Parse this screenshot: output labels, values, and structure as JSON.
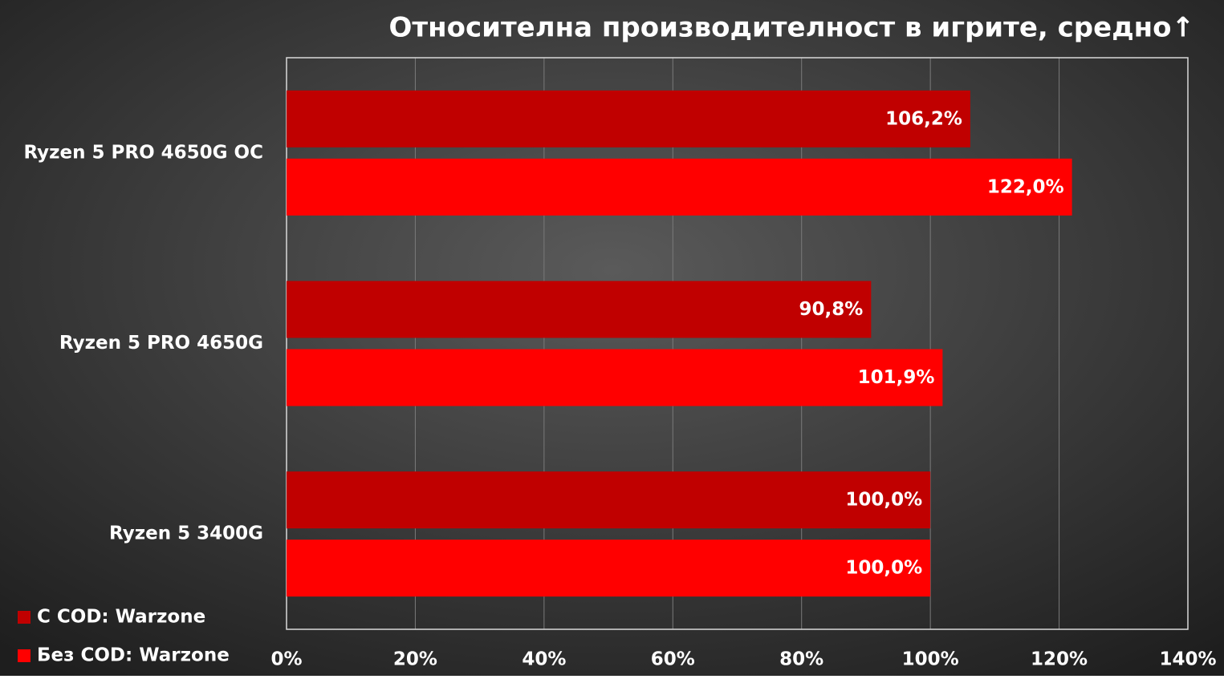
{
  "chart_data": {
    "type": "hbar",
    "title": "Относителна производителност в игрите, средно↑",
    "categories": [
      "Ryzen 5 PRO 4650G OC",
      "Ryzen 5 PRO 4650G",
      "Ryzen 5 3400G"
    ],
    "series": [
      {
        "name": "С COD: Warzone",
        "color": "#c00000",
        "values": [
          106.2,
          90.8,
          100.0
        ],
        "value_labels": [
          "106,2%",
          "90,8%",
          "100,0%"
        ]
      },
      {
        "name": "Без COD: Warzone",
        "color": "#ff0000",
        "values": [
          122.0,
          101.9,
          100.0
        ],
        "value_labels": [
          "122,0%",
          "101,9%",
          "100,0%"
        ]
      }
    ],
    "xlim": [
      0,
      140
    ],
    "xticks": [
      {
        "value": 0,
        "label": "0%"
      },
      {
        "value": 20,
        "label": "20%"
      },
      {
        "value": 40,
        "label": "40%"
      },
      {
        "value": 60,
        "label": "60%"
      },
      {
        "value": 80,
        "label": "80%"
      },
      {
        "value": 100,
        "label": "100%"
      },
      {
        "value": 120,
        "label": "120%"
      },
      {
        "value": 140,
        "label": "140%"
      }
    ],
    "grid": true,
    "legend": "bottom-left"
  }
}
